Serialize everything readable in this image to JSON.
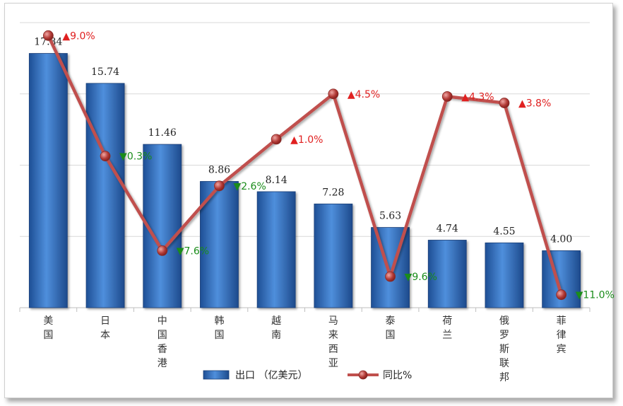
{
  "chart_data": {
    "type": "bar+line",
    "categories": [
      "美国",
      "日本",
      "中国香港",
      "韩国",
      "越南",
      "马来西亚",
      "泰国",
      "荷兰",
      "俄罗斯联邦",
      "菲律宾"
    ],
    "series": [
      {
        "name": "出口（亿美元）",
        "type": "bar",
        "values": [
          17.84,
          15.74,
          11.46,
          8.86,
          8.14,
          7.28,
          5.63,
          4.74,
          4.55,
          4.0
        ],
        "labels": [
          "17.84",
          "15.74",
          "11.46",
          "8.86",
          "8.14",
          "7.28",
          "5.63",
          "4.74",
          "4.55",
          "4.00"
        ],
        "color": "#3a78c9"
      },
      {
        "name": "同比%",
        "type": "line",
        "values": [
          9.0,
          -0.3,
          -7.6,
          -2.6,
          1.0,
          4.5,
          -9.6,
          4.3,
          3.8,
          -11.0
        ],
        "labels": [
          "▲9.0%",
          "▼0.3%",
          "▼7.6%",
          "▼2.6%",
          "▲1.0%",
          "▲4.5%",
          "▼9.6%",
          "▲4.3%",
          "▲3.8%",
          "▼11.0%"
        ],
        "color": "#c0504d"
      }
    ],
    "legend": {
      "bar_label": "出口 （亿美元）",
      "line_label": "同比%",
      "position": "bottom"
    },
    "colors": {
      "up": "#e02020",
      "down": "#1a8c1a",
      "grid": "#d9d9d9"
    },
    "ylim_bar": [
      0,
      20
    ],
    "ylim_line": [
      -12,
      10
    ],
    "grid": true
  }
}
